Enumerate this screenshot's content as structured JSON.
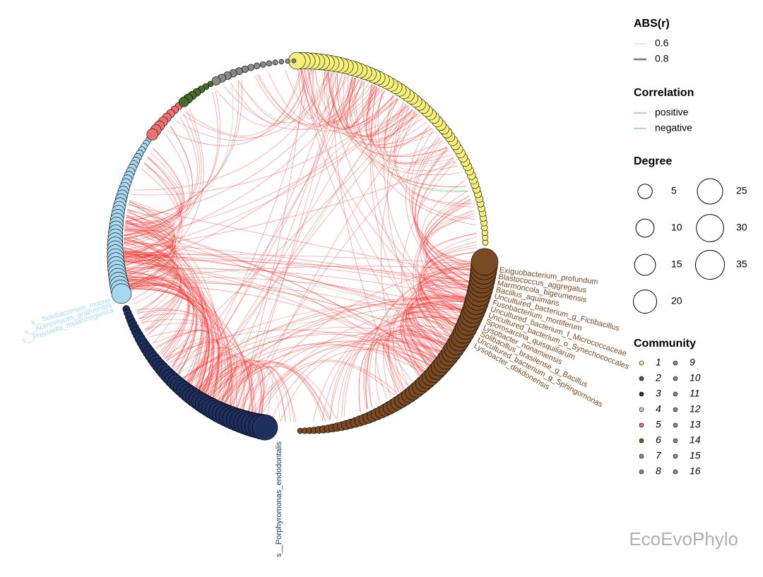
{
  "legend": {
    "abs_r": {
      "title": "ABS(r)",
      "items": [
        "0.6",
        "0.8"
      ]
    },
    "correlation": {
      "title": "Correlation",
      "items": [
        "positive",
        "negative"
      ],
      "colors": [
        "#ff6666",
        "#66bb66"
      ]
    },
    "degree": {
      "title": "Degree",
      "items": [
        5,
        10,
        15,
        20,
        25,
        30,
        35
      ]
    },
    "community": {
      "title": "Community",
      "items": [
        "1",
        "2",
        "3",
        "4",
        "5",
        "6",
        "7",
        "8",
        "9",
        "10",
        "11",
        "12",
        "13",
        "14",
        "15",
        "16"
      ],
      "colors": [
        "#f5f07a",
        "#7a4a22",
        "#1f2f5e",
        "#a8d8f0",
        "#f07070",
        "#4a6a2a",
        "#888888",
        "#888888",
        "#888888",
        "#888888",
        "#888888",
        "#888888",
        "#888888",
        "#888888",
        "#888888",
        "#888888"
      ]
    }
  },
  "labels": {
    "community_2": [
      "Exiguobacterium_profundum",
      "Blastococcus_aggregatus",
      "Marmoricola_bigeumensis",
      "Bacillus_aquimaris",
      "Uncultured_bacterium_g_Fictibacillus",
      "Fusobacterium_mortiferum",
      "Uncultured_bacterium_f_Micrococcaceae",
      "Uncultured_bacterium_o_Synechococcales",
      "Sporosarcina_quisquiliarum",
      "Lysobacter_nonamiensis",
      "Solibacillus_brasilense_g_Bacillus",
      "Uncultured_bacterium_g_Sphingomonas",
      "Lysobacter_dokdonensis"
    ],
    "community_4": [
      "s__Solobacterium_moorei",
      "s__Actinomyces_graevenitzii",
      "s__Prevotella_melaninogenica"
    ],
    "community_3": [
      "s__Porphyromonas_endodontalis"
    ]
  },
  "watermark": "EcoEvoPhylo"
}
